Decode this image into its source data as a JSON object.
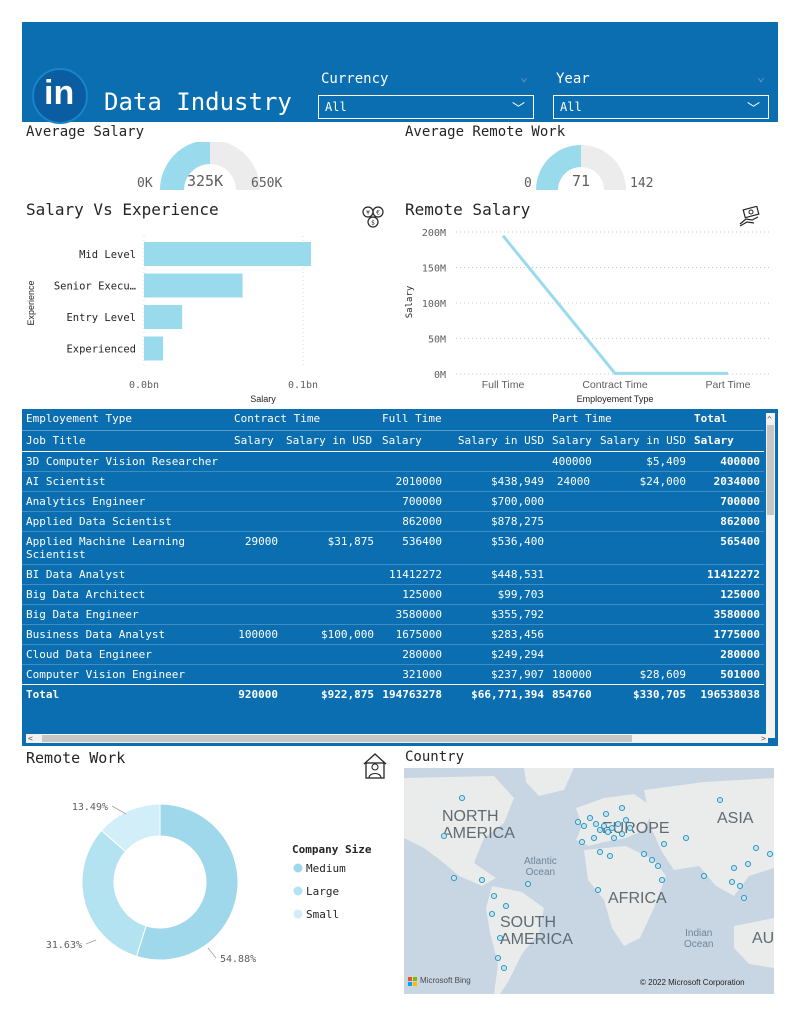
{
  "header": {
    "logo_text": "in",
    "title": "Data Industry",
    "currency": {
      "label": "Currency",
      "value": "All"
    },
    "year": {
      "label": "Year",
      "value": "All"
    }
  },
  "avg_salary": {
    "title": "Average Salary",
    "min": "0K",
    "value": "325K",
    "max": "650K",
    "fraction": 0.5
  },
  "avg_remote": {
    "title": "Average Remote Work",
    "min": "0",
    "value": "71",
    "max": "142",
    "fraction": 0.5
  },
  "salary_experience": {
    "title": "Salary Vs Experience",
    "icon": "currency-exchange-icon"
  },
  "remote_salary": {
    "title": "Remote Salary",
    "icon": "money-hand-icon"
  },
  "chart_data": [
    {
      "type": "bar",
      "title": "Salary Vs Experience",
      "categories": [
        "Mid Level",
        "Senior Execu…",
        "Entry Level",
        "Experienced"
      ],
      "values": [
        0.105,
        0.062,
        0.024,
        0.012
      ],
      "xlabel": "Salary",
      "ylabel": "Experience",
      "xticks": [
        "0.0bn",
        "0.1bn"
      ],
      "xlim": [
        0,
        0.1
      ],
      "color": "#99dbec"
    },
    {
      "type": "line",
      "title": "Remote Salary",
      "categories": [
        "Full Time",
        "Contract Time",
        "Part Time"
      ],
      "values": [
        194.76,
        0.92,
        0.85
      ],
      "xlabel": "Employement Type",
      "ylabel": "Salary",
      "yticks": [
        "0M",
        "50M",
        "100M",
        "150M",
        "200M"
      ],
      "ylim": [
        0,
        200
      ],
      "color": "#99dbec"
    },
    {
      "type": "pie",
      "title": "Remote Work",
      "categories": [
        "Medium",
        "Large",
        "Small"
      ],
      "values": [
        54.88,
        31.63,
        13.49
      ],
      "labels": [
        "54.88%",
        "31.63%",
        "13.49%"
      ],
      "legend_title": "Company Size",
      "colors": [
        "#9fd8ea",
        "#b3e3f1",
        "#d2eef8"
      ]
    }
  ],
  "remote_work": {
    "title": "Remote Work",
    "icon": "remote-worker-icon"
  },
  "matrix": {
    "header1": [
      "Employement Type",
      "Contract Time",
      "Full Time",
      "Part Time",
      "Total"
    ],
    "header2": [
      "Job Title",
      "Salary",
      "Salary in USD",
      "Salary",
      "Salary in USD",
      "Salary",
      "Salary in USD",
      "Salary"
    ],
    "rows": [
      [
        "3D Computer Vision Researcher",
        "",
        "",
        "",
        "",
        "400000",
        "$5,409",
        "400000"
      ],
      [
        "AI Scientist",
        "",
        "",
        "2010000",
        "$438,949",
        "24000",
        "$24,000",
        "2034000"
      ],
      [
        "Analytics Engineer",
        "",
        "",
        "700000",
        "$700,000",
        "",
        "",
        "700000"
      ],
      [
        "Applied Data Scientist",
        "",
        "",
        "862000",
        "$878,275",
        "",
        "",
        "862000"
      ],
      [
        "Applied Machine Learning Scientist",
        "29000",
        "$31,875",
        "536400",
        "$536,400",
        "",
        "",
        "565400"
      ],
      [
        "BI Data Analyst",
        "",
        "",
        "11412272",
        "$448,531",
        "",
        "",
        "11412272"
      ],
      [
        "Big Data Architect",
        "",
        "",
        "125000",
        "$99,703",
        "",
        "",
        "125000"
      ],
      [
        "Big Data Engineer",
        "",
        "",
        "3580000",
        "$355,792",
        "",
        "",
        "3580000"
      ],
      [
        "Business Data Analyst",
        "100000",
        "$100,000",
        "1675000",
        "$283,456",
        "",
        "",
        "1775000"
      ],
      [
        "Cloud Data Engineer",
        "",
        "",
        "280000",
        "$249,294",
        "",
        "",
        "280000"
      ],
      [
        "Computer Vision Engineer",
        "",
        "",
        "321000",
        "$237,907",
        "180000",
        "$28,609",
        "501000"
      ]
    ],
    "total": [
      "Total",
      "920000",
      "$922,875",
      "194763278",
      "$66,771,394",
      "854760",
      "$330,705",
      "196538038"
    ]
  },
  "country": {
    "title": "Country",
    "labels": {
      "north_america_1": "NORTH",
      "north_america_2": "AMERICA",
      "europe": "EUROPE",
      "asia": "ASIA",
      "africa": "AFRICA",
      "south_america_1": "SOUTH",
      "south_america_2": "AMERICA",
      "atlantic_1": "Atlantic",
      "atlantic_2": "Ocean",
      "indian_1": "Indian",
      "indian_2": "Ocean",
      "au": "AU"
    },
    "attribution_left": "Microsoft Bing",
    "attribution_right": "© 2022 Microsoft Corporation"
  }
}
